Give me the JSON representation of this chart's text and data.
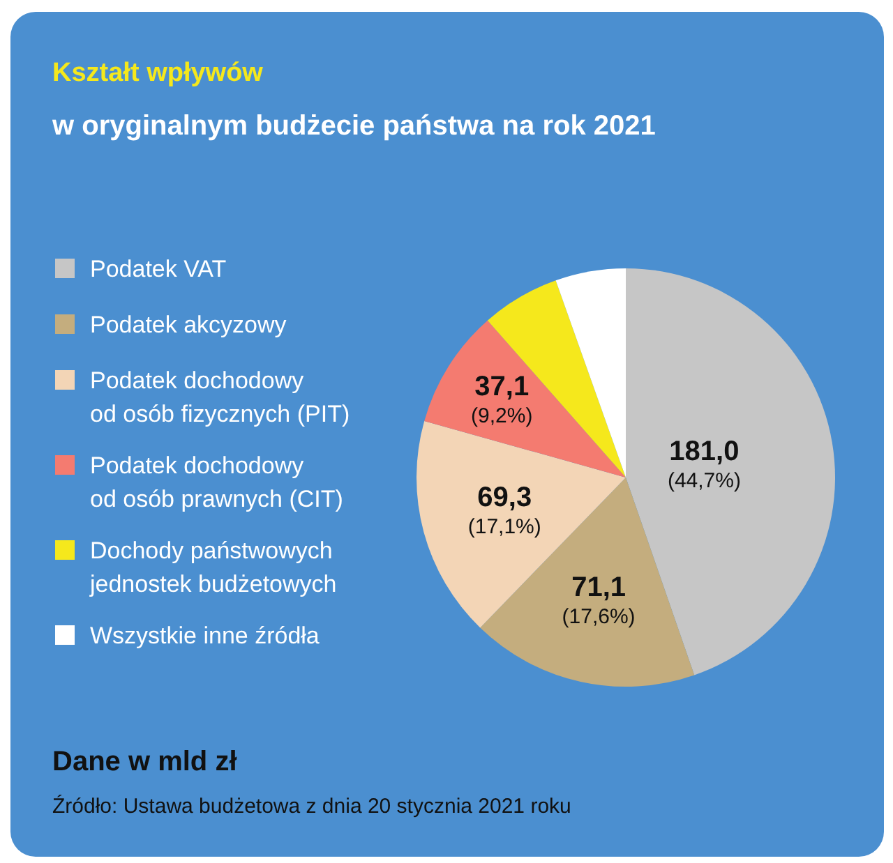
{
  "chart_data": {
    "type": "pie",
    "title": "Kształt wpływów",
    "subtitle": "w oryginalnym budżecie państwa na rok 2021",
    "categories": [
      "Podatek VAT",
      "Podatek akcyzowy",
      "Podatek dochodowy\nod osób fizycznych (PIT)",
      "Podatek dochodowy\nod osób prawnych (CIT)",
      "Dochody państwowych\njednostek budżetowych",
      "Wszystkie inne źródła"
    ],
    "values": [
      181.0,
      71.1,
      69.3,
      37.1,
      24.5,
      22.0
    ],
    "colors": [
      "#c6c6c6",
      "#c4ad7e",
      "#f3d5b6",
      "#f47b70",
      "#f5e81c",
      "#ffffff"
    ],
    "value_labels": [
      "181,0 (44,7%)",
      "71,1 (17,6%)",
      "69,3 (17,1%)",
      "37,1 (9,2%)",
      null,
      null
    ],
    "legend": "left",
    "annotations": [
      "Dane w mld zł",
      "Źródło: Ustawa budżetowa z dnia 20 stycznia 2021 roku"
    ]
  }
}
